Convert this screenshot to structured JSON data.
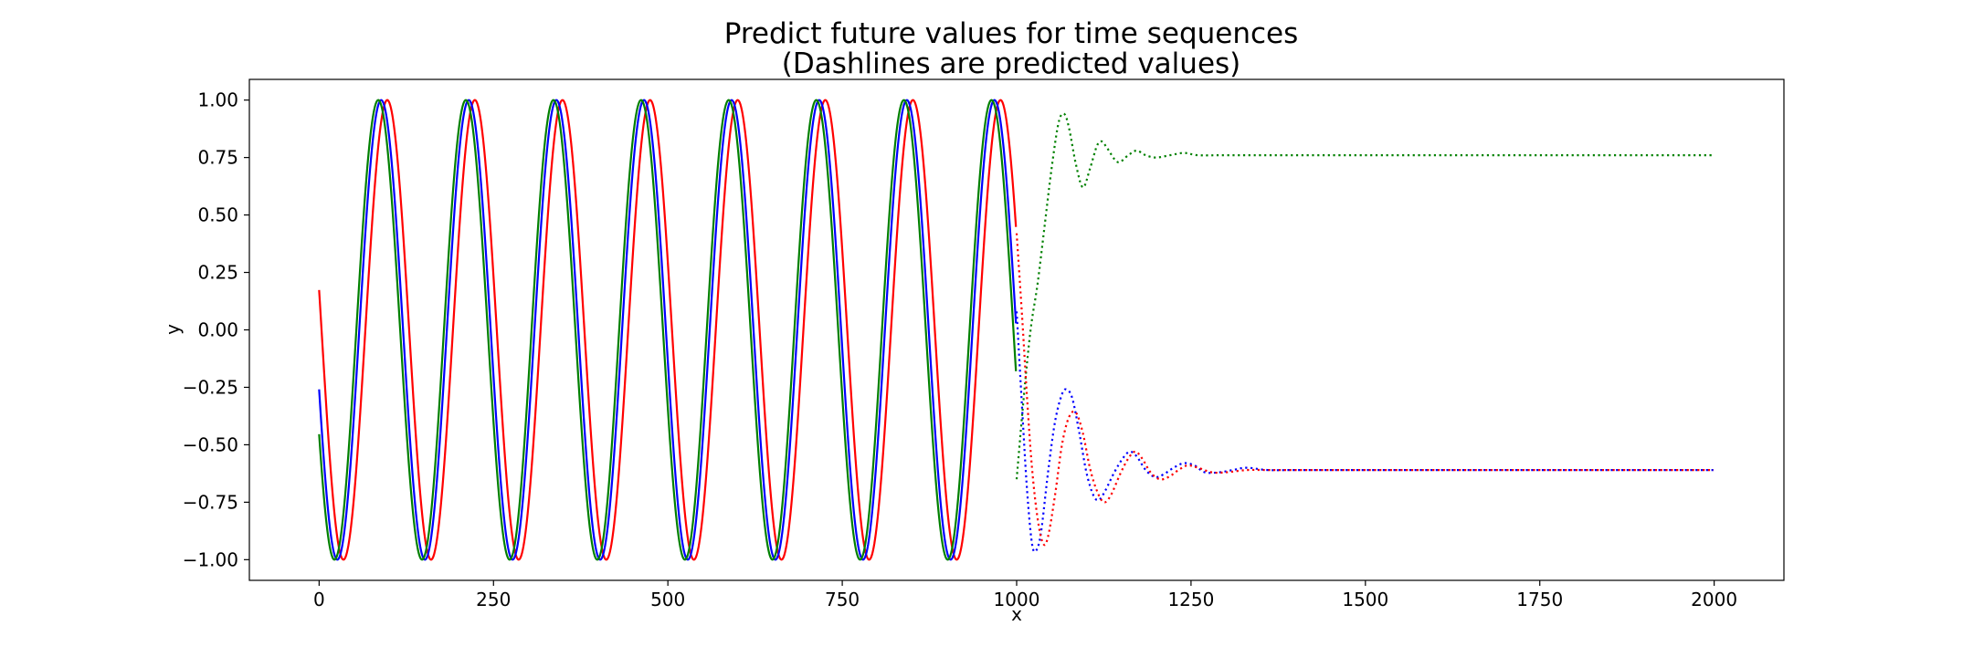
{
  "chart_data": {
    "type": "line",
    "title": [
      "Predict future values for time sequences",
      "(Dashlines are predicted values)"
    ],
    "xlabel": "x",
    "ylabel": "y",
    "xlim": [
      -100,
      2100
    ],
    "ylim": [
      -1.09,
      1.09
    ],
    "xticks": [
      0,
      250,
      500,
      750,
      1000,
      1250,
      1500,
      1750,
      2000
    ],
    "xtick_labels": [
      "0",
      "250",
      "500",
      "750",
      "1000",
      "1250",
      "1500",
      "1750",
      "2000"
    ],
    "yticks": [
      1.0,
      0.75,
      0.5,
      0.25,
      0.0,
      -0.25,
      -0.5,
      -0.75,
      -1.0
    ],
    "ytick_labels": [
      "1.00",
      "0.75",
      "0.50",
      "0.25",
      "0.00",
      "−0.25",
      "−0.50",
      "−0.75",
      "−1.00"
    ],
    "grid": false,
    "legend": "none",
    "observed": {
      "x_range": [
        0,
        999
      ],
      "period": 125.6,
      "series": [
        {
          "color": "#ff0000",
          "x0_value": 0.18,
          "phase_deg": 170
        },
        {
          "color": "#0000ff",
          "x0_value": -0.26,
          "phase_deg": 195
        },
        {
          "color": "#008000",
          "x0_value": -0.45,
          "phase_deg": 207
        }
      ]
    },
    "predicted": {
      "x_range": [
        1000,
        1999
      ],
      "style": "dotted",
      "series": [
        {
          "color": "#008000",
          "points": [
            [
              1000,
              -0.65
            ],
            [
              1010,
              -0.3
            ],
            [
              1020,
              0.0
            ],
            [
              1030,
              0.2
            ],
            [
              1040,
              0.45
            ],
            [
              1050,
              0.7
            ],
            [
              1060,
              0.9
            ],
            [
              1068,
              0.94
            ],
            [
              1075,
              0.88
            ],
            [
              1085,
              0.72
            ],
            [
              1095,
              0.62
            ],
            [
              1105,
              0.7
            ],
            [
              1115,
              0.8
            ],
            [
              1122,
              0.82
            ],
            [
              1130,
              0.79
            ],
            [
              1145,
              0.73
            ],
            [
              1160,
              0.76
            ],
            [
              1172,
              0.78
            ],
            [
              1185,
              0.76
            ],
            [
              1200,
              0.75
            ],
            [
              1220,
              0.76
            ],
            [
              1240,
              0.77
            ],
            [
              1260,
              0.76
            ],
            [
              1300,
              0.76
            ],
            [
              1400,
              0.76
            ],
            [
              1600,
              0.76
            ],
            [
              1800,
              0.76
            ],
            [
              1999,
              0.76
            ]
          ]
        },
        {
          "color": "#0000ff",
          "points": [
            [
              1000,
              0.08
            ],
            [
              1008,
              -0.35
            ],
            [
              1015,
              -0.7
            ],
            [
              1022,
              -0.93
            ],
            [
              1028,
              -0.96
            ],
            [
              1035,
              -0.88
            ],
            [
              1045,
              -0.62
            ],
            [
              1055,
              -0.4
            ],
            [
              1065,
              -0.28
            ],
            [
              1072,
              -0.26
            ],
            [
              1080,
              -0.3
            ],
            [
              1090,
              -0.45
            ],
            [
              1100,
              -0.62
            ],
            [
              1110,
              -0.72
            ],
            [
              1118,
              -0.74
            ],
            [
              1127,
              -0.7
            ],
            [
              1140,
              -0.62
            ],
            [
              1152,
              -0.56
            ],
            [
              1162,
              -0.53
            ],
            [
              1172,
              -0.55
            ],
            [
              1185,
              -0.61
            ],
            [
              1198,
              -0.64
            ],
            [
              1210,
              -0.63
            ],
            [
              1225,
              -0.6
            ],
            [
              1240,
              -0.58
            ],
            [
              1255,
              -0.59
            ],
            [
              1270,
              -0.62
            ],
            [
              1290,
              -0.62
            ],
            [
              1310,
              -0.61
            ],
            [
              1330,
              -0.6
            ],
            [
              1360,
              -0.61
            ],
            [
              1400,
              -0.61
            ],
            [
              1500,
              -0.61
            ],
            [
              1700,
              -0.61
            ],
            [
              1999,
              -0.61
            ]
          ]
        },
        {
          "color": "#ff0000",
          "points": [
            [
              1000,
              0.42
            ],
            [
              1008,
              0.05
            ],
            [
              1015,
              -0.3
            ],
            [
              1022,
              -0.6
            ],
            [
              1030,
              -0.82
            ],
            [
              1038,
              -0.93
            ],
            [
              1045,
              -0.9
            ],
            [
              1055,
              -0.72
            ],
            [
              1065,
              -0.5
            ],
            [
              1075,
              -0.38
            ],
            [
              1085,
              -0.36
            ],
            [
              1095,
              -0.45
            ],
            [
              1105,
              -0.6
            ],
            [
              1115,
              -0.7
            ],
            [
              1125,
              -0.75
            ],
            [
              1135,
              -0.72
            ],
            [
              1148,
              -0.63
            ],
            [
              1160,
              -0.56
            ],
            [
              1170,
              -0.53
            ],
            [
              1180,
              -0.56
            ],
            [
              1192,
              -0.62
            ],
            [
              1205,
              -0.65
            ],
            [
              1218,
              -0.64
            ],
            [
              1232,
              -0.61
            ],
            [
              1245,
              -0.59
            ],
            [
              1260,
              -0.6
            ],
            [
              1280,
              -0.62
            ],
            [
              1300,
              -0.62
            ],
            [
              1330,
              -0.61
            ],
            [
              1360,
              -0.61
            ],
            [
              1400,
              -0.61
            ],
            [
              1600,
              -0.61
            ],
            [
              1999,
              -0.61
            ]
          ]
        }
      ]
    }
  }
}
